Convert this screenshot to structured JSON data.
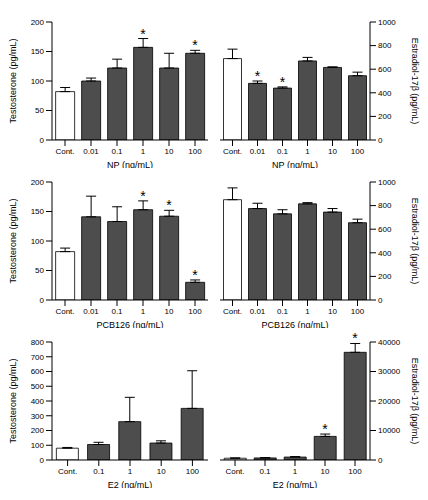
{
  "chart_data": [
    {
      "type": "bar",
      "x_label": "NP (ng/mL)",
      "y_label": "Testosterone (pg/mL)",
      "categories": [
        "Cont.",
        "0.01",
        "0.1",
        "1",
        "10",
        "100"
      ],
      "values": [
        82,
        100,
        122,
        157,
        122,
        147
      ],
      "errors": [
        7,
        5,
        15,
        15,
        25,
        5
      ],
      "colors": [
        "#ffffff",
        "#4d4d4d",
        "#4d4d4d",
        "#4d4d4d",
        "#4d4d4d",
        "#4d4d4d"
      ],
      "ylim": [
        0,
        200
      ],
      "yticks": [
        0,
        50,
        100,
        150,
        200
      ],
      "grid": false,
      "annotations": [
        {
          "category": "1",
          "text": "*"
        },
        {
          "category": "100",
          "text": "*"
        }
      ]
    },
    {
      "type": "bar",
      "x_label": "NP (ng/mL)",
      "y_label": "Estradiol-17β (pg/mL)",
      "categories": [
        "Cont.",
        "0.01",
        "0.1",
        "1",
        "10",
        "100"
      ],
      "values": [
        690,
        480,
        440,
        670,
        615,
        545
      ],
      "errors": [
        80,
        20,
        10,
        30,
        5,
        30
      ],
      "colors": [
        "#ffffff",
        "#4d4d4d",
        "#4d4d4d",
        "#4d4d4d",
        "#4d4d4d",
        "#4d4d4d"
      ],
      "ylim": [
        0,
        1000
      ],
      "yticks": [
        0,
        200,
        400,
        600,
        800,
        1000
      ],
      "grid": false,
      "annotations": [
        {
          "category": "0.01",
          "text": "*"
        },
        {
          "category": "0.1",
          "text": "*"
        }
      ]
    },
    {
      "type": "bar",
      "x_label": "PCB126 (ng/mL)",
      "y_label": "Testosterone (pg/mL)",
      "categories": [
        "Cont.",
        "0.01",
        "0.1",
        "1",
        "10",
        "100"
      ],
      "values": [
        82,
        141,
        133,
        153,
        142,
        30
      ],
      "errors": [
        6,
        35,
        25,
        15,
        10,
        4
      ],
      "colors": [
        "#ffffff",
        "#4d4d4d",
        "#4d4d4d",
        "#4d4d4d",
        "#4d4d4d",
        "#4d4d4d"
      ],
      "ylim": [
        0,
        200
      ],
      "yticks": [
        0,
        50,
        100,
        150,
        200
      ],
      "grid": false,
      "annotations": [
        {
          "category": "1",
          "text": "*"
        },
        {
          "category": "10",
          "text": "*"
        },
        {
          "category": "100",
          "text": "*"
        }
      ]
    },
    {
      "type": "bar",
      "x_label": "PCB126 (ng/mL)",
      "y_label": "Estradiol-17β (pg/mL)",
      "categories": [
        "Cont.",
        "0.01",
        "0.1",
        "1",
        "10",
        "100"
      ],
      "values": [
        850,
        775,
        730,
        815,
        745,
        655
      ],
      "errors": [
        100,
        45,
        35,
        10,
        30,
        30
      ],
      "colors": [
        "#ffffff",
        "#4d4d4d",
        "#4d4d4d",
        "#4d4d4d",
        "#4d4d4d",
        "#4d4d4d"
      ],
      "ylim": [
        0,
        1000
      ],
      "yticks": [
        0,
        200,
        400,
        600,
        800,
        1000
      ],
      "grid": false,
      "annotations": []
    },
    {
      "type": "bar",
      "x_label": "E2 (ng/mL)",
      "y_label": "Testosterone (pg/mL)",
      "categories": [
        "Cont.",
        "0.1",
        "1",
        "10",
        "100"
      ],
      "values": [
        80,
        105,
        260,
        115,
        350
      ],
      "errors": [
        5,
        15,
        165,
        15,
        255
      ],
      "colors": [
        "#ffffff",
        "#4d4d4d",
        "#4d4d4d",
        "#4d4d4d",
        "#4d4d4d"
      ],
      "ylim": [
        0,
        800
      ],
      "yticks": [
        0,
        100,
        200,
        300,
        400,
        500,
        600,
        700,
        800
      ],
      "grid": false,
      "annotations": []
    },
    {
      "type": "bar",
      "x_label": "E2 (ng/mL)",
      "y_label": "Estradiol-17β (pg/mL)",
      "categories": [
        "Cont.",
        "0.1",
        "1",
        "10",
        "100"
      ],
      "values": [
        600,
        700,
        1000,
        8000,
        36500
      ],
      "errors": [
        100,
        100,
        150,
        800,
        3000
      ],
      "colors": [
        "#ffffff",
        "#4d4d4d",
        "#4d4d4d",
        "#4d4d4d",
        "#4d4d4d"
      ],
      "ylim": [
        0,
        40000
      ],
      "yticks": [
        0,
        10000,
        20000,
        30000,
        40000
      ],
      "grid": false,
      "annotations": [
        {
          "category": "10",
          "text": "*"
        },
        {
          "category": "100",
          "text": "*"
        }
      ]
    }
  ]
}
